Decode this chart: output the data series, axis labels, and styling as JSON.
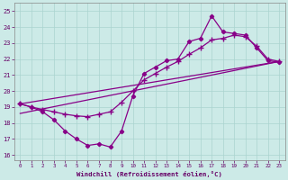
{
  "xlabel": "Windchill (Refroidissement éolien,°C)",
  "background_color": "#cceae7",
  "grid_color": "#aad4d0",
  "line_color": "#880088",
  "xlim": [
    -0.5,
    23.5
  ],
  "ylim": [
    15.7,
    25.5
  ],
  "xticks": [
    0,
    1,
    2,
    3,
    4,
    5,
    6,
    7,
    8,
    9,
    10,
    11,
    12,
    13,
    14,
    15,
    16,
    17,
    18,
    19,
    20,
    21,
    22,
    23
  ],
  "yticks": [
    16,
    17,
    18,
    19,
    20,
    21,
    22,
    23,
    24,
    25
  ],
  "line1_x": [
    0,
    1,
    2,
    3,
    4,
    5,
    6,
    7,
    8,
    9,
    10,
    11,
    12,
    13,
    14,
    15,
    16,
    17,
    18,
    19,
    20,
    21,
    22,
    23
  ],
  "line1_y": [
    19.2,
    19.0,
    18.7,
    18.2,
    17.5,
    17.0,
    16.6,
    16.7,
    16.5,
    17.5,
    19.7,
    21.1,
    21.5,
    21.9,
    22.0,
    23.1,
    23.3,
    24.7,
    23.7,
    23.6,
    23.5,
    22.7,
    21.9,
    21.8
  ],
  "line2_x": [
    0,
    1,
    2,
    3,
    4,
    5,
    6,
    7,
    8,
    9,
    10,
    11,
    12,
    13,
    14,
    15,
    16,
    17,
    18,
    19,
    20,
    21,
    22,
    23
  ],
  "line2_y": [
    19.2,
    19.0,
    18.85,
    18.7,
    18.55,
    18.45,
    18.4,
    18.55,
    18.7,
    19.3,
    20.0,
    20.7,
    21.1,
    21.5,
    21.85,
    22.3,
    22.7,
    23.2,
    23.3,
    23.5,
    23.4,
    22.8,
    22.0,
    21.85
  ],
  "line3_x": [
    0,
    23
  ],
  "line3_y": [
    19.2,
    21.85
  ],
  "line4_x": [
    0,
    23
  ],
  "line4_y": [
    18.6,
    21.85
  ]
}
